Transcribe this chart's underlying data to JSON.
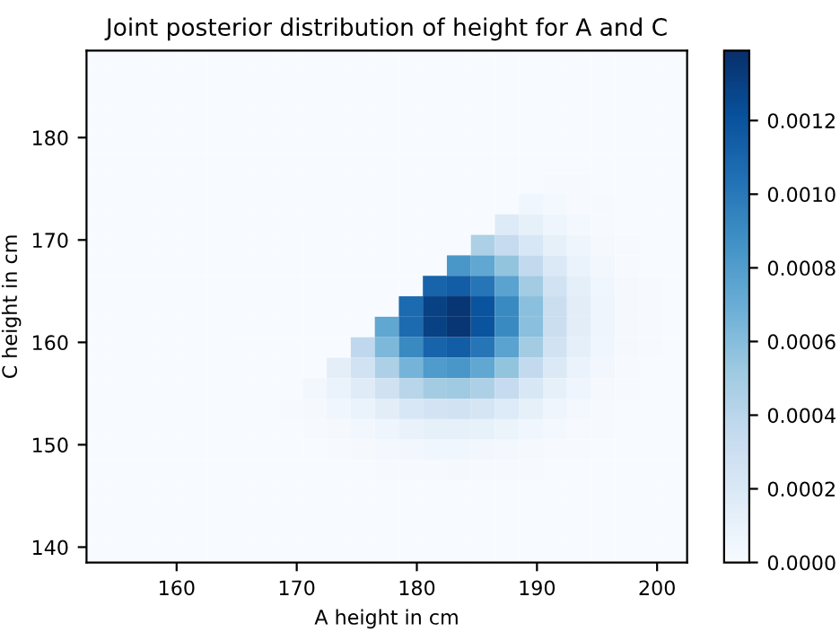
{
  "chart_data": {
    "type": "heatmap",
    "title": "Joint posterior distribution of height for A and C",
    "xlabel": "A height in cm",
    "ylabel": "C height in cm",
    "xlim": [
      152.5,
      202.5
    ],
    "ylim": [
      138.5,
      188.5
    ],
    "xticks": [
      160,
      170,
      180,
      190,
      200
    ],
    "yticks": [
      140,
      150,
      160,
      170,
      180
    ],
    "clim": [
      0,
      0.00139
    ],
    "cticks": [
      {
        "value": 0,
        "label": "0.0000"
      },
      {
        "value": 0.0002,
        "label": "0.0002"
      },
      {
        "value": 0.0004,
        "label": "0.0004"
      },
      {
        "value": 0.0006,
        "label": "0.0006"
      },
      {
        "value": 0.0008,
        "label": "0.0008"
      },
      {
        "value": 0.001,
        "label": "0.0010"
      },
      {
        "value": 0.0012,
        "label": "0.0012"
      }
    ],
    "cells": [
      [
        0,
        0,
        0,
        0,
        0,
        0,
        0,
        0,
        0,
        0,
        0,
        0,
        0,
        0,
        0,
        0,
        0,
        0,
        0,
        0,
        0,
        0,
        0,
        0,
        0
      ],
      [
        0,
        0,
        0,
        0,
        0,
        0,
        0,
        0,
        0,
        0,
        0,
        0,
        0,
        0,
        0,
        0,
        0,
        0,
        0,
        0,
        0,
        0,
        0,
        0,
        0
      ],
      [
        0,
        0,
        0,
        0,
        0,
        0,
        0,
        0,
        0,
        0,
        0,
        0,
        0,
        0,
        0,
        0,
        0,
        0,
        0,
        0,
        0,
        0,
        0,
        0,
        0
      ],
      [
        0,
        0,
        0,
        0,
        0,
        0,
        0,
        0,
        0,
        0,
        0,
        0,
        0,
        0,
        0,
        0,
        0,
        0,
        0,
        0,
        0,
        0,
        0,
        0,
        0
      ],
      [
        0,
        0,
        0,
        0,
        0,
        0,
        0,
        0,
        0,
        0,
        0,
        0,
        0,
        0,
        0,
        0,
        0,
        0,
        0,
        0,
        0,
        0,
        0,
        0,
        0
      ],
      [
        0,
        0,
        0,
        0,
        0,
        0,
        0,
        0,
        0,
        0,
        0,
        0,
        0,
        0,
        0,
        0,
        0,
        0,
        0,
        0,
        0,
        0,
        0,
        0,
        0
      ],
      [
        0,
        0,
        0,
        0,
        0,
        0,
        0,
        0,
        0,
        0,
        0,
        0,
        0,
        0,
        0,
        0,
        0,
        0,
        0,
        1e-05,
        1e-05,
        0,
        0,
        0,
        0
      ],
      [
        0,
        0,
        0,
        0,
        0,
        0,
        0,
        0,
        0,
        0,
        0,
        0,
        0,
        0,
        0,
        0,
        0,
        0,
        5e-05,
        3e-05,
        1e-05,
        1e-05,
        0,
        0,
        0
      ],
      [
        0,
        0,
        0,
        0,
        0,
        0,
        0,
        0,
        0,
        0,
        0,
        0,
        0,
        0,
        0,
        0,
        0,
        0.00018,
        0.00012,
        6e-05,
        3e-05,
        1e-05,
        0,
        0,
        0
      ],
      [
        0,
        0,
        0,
        0,
        0,
        0,
        0,
        0,
        0,
        0,
        0,
        0,
        0,
        0,
        0,
        0,
        0.00046,
        0.00035,
        0.00022,
        0.00012,
        6e-05,
        2e-05,
        1e-05,
        0,
        0
      ],
      [
        0,
        0,
        0,
        0,
        0,
        0,
        0,
        0,
        0,
        0,
        0,
        0,
        0,
        0,
        0,
        0.00084,
        0.00074,
        0.00056,
        0.00036,
        0.0002,
        9e-05,
        4e-05,
        1e-05,
        0,
        0
      ],
      [
        0,
        0,
        0,
        0,
        0,
        0,
        0,
        0,
        0,
        0,
        0,
        0,
        0,
        0,
        0.00111,
        0.00115,
        0.00102,
        0.00077,
        0.0005,
        0.00027,
        0.00013,
        5e-05,
        2e-05,
        1e-05,
        0
      ],
      [
        0,
        0,
        0,
        0,
        0,
        0,
        0,
        0,
        0,
        0,
        0,
        0,
        0,
        0.00107,
        0.0013,
        0.00136,
        0.0012,
        0.00091,
        0.00059,
        0.00032,
        0.00015,
        6e-05,
        2e-05,
        1e-05,
        0
      ],
      [
        0,
        0,
        0,
        0,
        0,
        0,
        0,
        0,
        0,
        0,
        0,
        0,
        0.00074,
        0.00107,
        0.0013,
        0.00136,
        0.0012,
        0.00091,
        0.00059,
        0.00032,
        0.00015,
        6e-05,
        2e-05,
        1e-05,
        0
      ],
      [
        0,
        0,
        0,
        0,
        0,
        0,
        0,
        0,
        0,
        0,
        0,
        0.00038,
        0.00063,
        0.00091,
        0.00111,
        0.00115,
        0.00102,
        0.00077,
        0.0005,
        0.00027,
        0.00013,
        5e-05,
        2e-05,
        1e-05,
        0
      ],
      [
        0,
        0,
        0,
        0,
        0,
        0,
        0,
        0,
        0,
        0,
        0.00014,
        0.00027,
        0.00046,
        0.00066,
        0.00081,
        0.00084,
        0.00074,
        0.00056,
        0.00036,
        0.0002,
        9e-05,
        4e-05,
        1e-05,
        0,
        0
      ],
      [
        0,
        0,
        0,
        0,
        0,
        0,
        0,
        0,
        0,
        4e-05,
        9e-05,
        0.00017,
        0.00028,
        0.00041,
        0.0005,
        0.00052,
        0.00046,
        0.00035,
        0.00022,
        0.00012,
        6e-05,
        2e-05,
        1e-05,
        0,
        0
      ],
      [
        0,
        0,
        0,
        0,
        0,
        0,
        0,
        0,
        1e-05,
        2e-05,
        5e-05,
        9e-05,
        0.00015,
        0.00022,
        0.00026,
        0.00027,
        0.00024,
        0.00018,
        0.00012,
        6e-05,
        3e-05,
        1e-05,
        0,
        0,
        0
      ],
      [
        0,
        0,
        0,
        0,
        0,
        0,
        0,
        0,
        0,
        1e-05,
        2e-05,
        4e-05,
        7e-05,
        0.0001,
        0.00012,
        0.00012,
        0.00011,
        8e-05,
        5e-05,
        3e-05,
        1e-05,
        1e-05,
        0,
        0,
        0
      ],
      [
        0,
        0,
        0,
        0,
        0,
        0,
        0,
        0,
        0,
        0,
        1e-05,
        2e-05,
        3e-05,
        4e-05,
        5e-05,
        5e-05,
        4e-05,
        3e-05,
        2e-05,
        1e-05,
        1e-05,
        0,
        0,
        0,
        0
      ],
      [
        0,
        0,
        0,
        0,
        0,
        0,
        0,
        0,
        0,
        0,
        0,
        0,
        1e-05,
        1e-05,
        1e-05,
        2e-05,
        1e-05,
        1e-05,
        1e-05,
        0,
        0,
        0,
        0,
        0,
        0
      ],
      [
        0,
        0,
        0,
        0,
        0,
        0,
        0,
        0,
        0,
        0,
        0,
        0,
        0,
        0,
        0,
        0,
        0,
        0,
        0,
        0,
        0,
        0,
        0,
        0,
        0
      ],
      [
        0,
        0,
        0,
        0,
        0,
        0,
        0,
        0,
        0,
        0,
        0,
        0,
        0,
        0,
        0,
        0,
        0,
        0,
        0,
        0,
        0,
        0,
        0,
        0,
        0
      ],
      [
        0,
        0,
        0,
        0,
        0,
        0,
        0,
        0,
        0,
        0,
        0,
        0,
        0,
        0,
        0,
        0,
        0,
        0,
        0,
        0,
        0,
        0,
        0,
        0,
        0
      ],
      [
        0,
        0,
        0,
        0,
        0,
        0,
        0,
        0,
        0,
        0,
        0,
        0,
        0,
        0,
        0,
        0,
        0,
        0,
        0,
        0,
        0,
        0,
        0,
        0,
        0
      ]
    ]
  }
}
